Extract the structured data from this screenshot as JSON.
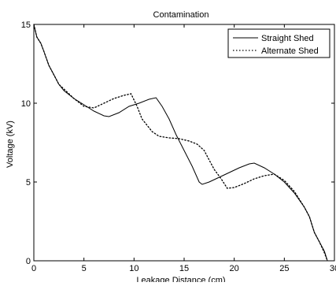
{
  "chart_data": {
    "type": "line",
    "title": "Contamination",
    "xlabel": "Leakage Distance  (cm)",
    "ylabel": "Voltage (kV)",
    "xlim": [
      0,
      30
    ],
    "ylim": [
      0,
      15
    ],
    "xticks": [
      "0",
      "5",
      "10",
      "15",
      "20",
      "25",
      "30"
    ],
    "yticks": [
      "0",
      "5",
      "10",
      "15"
    ],
    "grid": false,
    "legend": "top-right",
    "series": [
      {
        "name": "Straight Shed",
        "style": "solid",
        "color": "#000000",
        "points": [
          [
            0,
            15.0
          ],
          [
            0.3,
            14.2
          ],
          [
            0.7,
            13.8
          ],
          [
            1.0,
            13.3
          ],
          [
            1.5,
            12.4
          ],
          [
            2.0,
            11.8
          ],
          [
            2.5,
            11.2
          ],
          [
            3.0,
            10.8
          ],
          [
            4.0,
            10.3
          ],
          [
            5.0,
            9.9
          ],
          [
            6.0,
            9.5
          ],
          [
            7.0,
            9.2
          ],
          [
            7.5,
            9.15
          ],
          [
            8.5,
            9.4
          ],
          [
            9.5,
            9.8
          ],
          [
            10.5,
            10.0
          ],
          [
            11.5,
            10.25
          ],
          [
            12.2,
            10.35
          ],
          [
            12.8,
            9.8
          ],
          [
            13.5,
            9.0
          ],
          [
            14.2,
            8.0
          ],
          [
            15.0,
            7.0
          ],
          [
            15.8,
            6.0
          ],
          [
            16.5,
            5.0
          ],
          [
            16.8,
            4.85
          ],
          [
            17.5,
            5.0
          ],
          [
            18.5,
            5.3
          ],
          [
            19.5,
            5.6
          ],
          [
            20.5,
            5.9
          ],
          [
            21.5,
            6.15
          ],
          [
            22.0,
            6.2
          ],
          [
            23.0,
            5.9
          ],
          [
            24.0,
            5.5
          ],
          [
            25.0,
            5.0
          ],
          [
            26.0,
            4.3
          ],
          [
            27.0,
            3.4
          ],
          [
            27.5,
            2.8
          ],
          [
            28.0,
            1.8
          ],
          [
            28.5,
            1.2
          ],
          [
            29.0,
            0.6
          ],
          [
            29.3,
            0
          ]
        ]
      },
      {
        "name": "Alternate Shed",
        "style": "dotted",
        "color": "#000000",
        "points": [
          [
            0,
            15.0
          ],
          [
            0.3,
            14.2
          ],
          [
            0.7,
            13.8
          ],
          [
            1.0,
            13.3
          ],
          [
            1.5,
            12.4
          ],
          [
            2.0,
            11.8
          ],
          [
            2.5,
            11.2
          ],
          [
            3.0,
            10.9
          ],
          [
            4.0,
            10.3
          ],
          [
            5.0,
            9.8
          ],
          [
            6.0,
            9.7
          ],
          [
            7.0,
            10.0
          ],
          [
            8.0,
            10.3
          ],
          [
            9.0,
            10.5
          ],
          [
            9.7,
            10.6
          ],
          [
            10.3,
            9.8
          ],
          [
            10.8,
            9.0
          ],
          [
            11.3,
            8.6
          ],
          [
            11.8,
            8.2
          ],
          [
            12.5,
            7.9
          ],
          [
            13.5,
            7.8
          ],
          [
            14.5,
            7.75
          ],
          [
            15.5,
            7.6
          ],
          [
            16.3,
            7.4
          ],
          [
            17.0,
            7.0
          ],
          [
            17.5,
            6.4
          ],
          [
            18.0,
            5.8
          ],
          [
            18.7,
            5.2
          ],
          [
            19.3,
            4.6
          ],
          [
            20.0,
            4.65
          ],
          [
            21.0,
            4.9
          ],
          [
            22.0,
            5.2
          ],
          [
            23.0,
            5.4
          ],
          [
            24.0,
            5.5
          ],
          [
            25.0,
            5.1
          ],
          [
            26.0,
            4.4
          ],
          [
            27.0,
            3.4
          ],
          [
            27.5,
            2.8
          ],
          [
            28.0,
            1.8
          ],
          [
            28.5,
            1.2
          ],
          [
            29.0,
            0.5
          ],
          [
            29.3,
            0
          ]
        ]
      }
    ]
  }
}
